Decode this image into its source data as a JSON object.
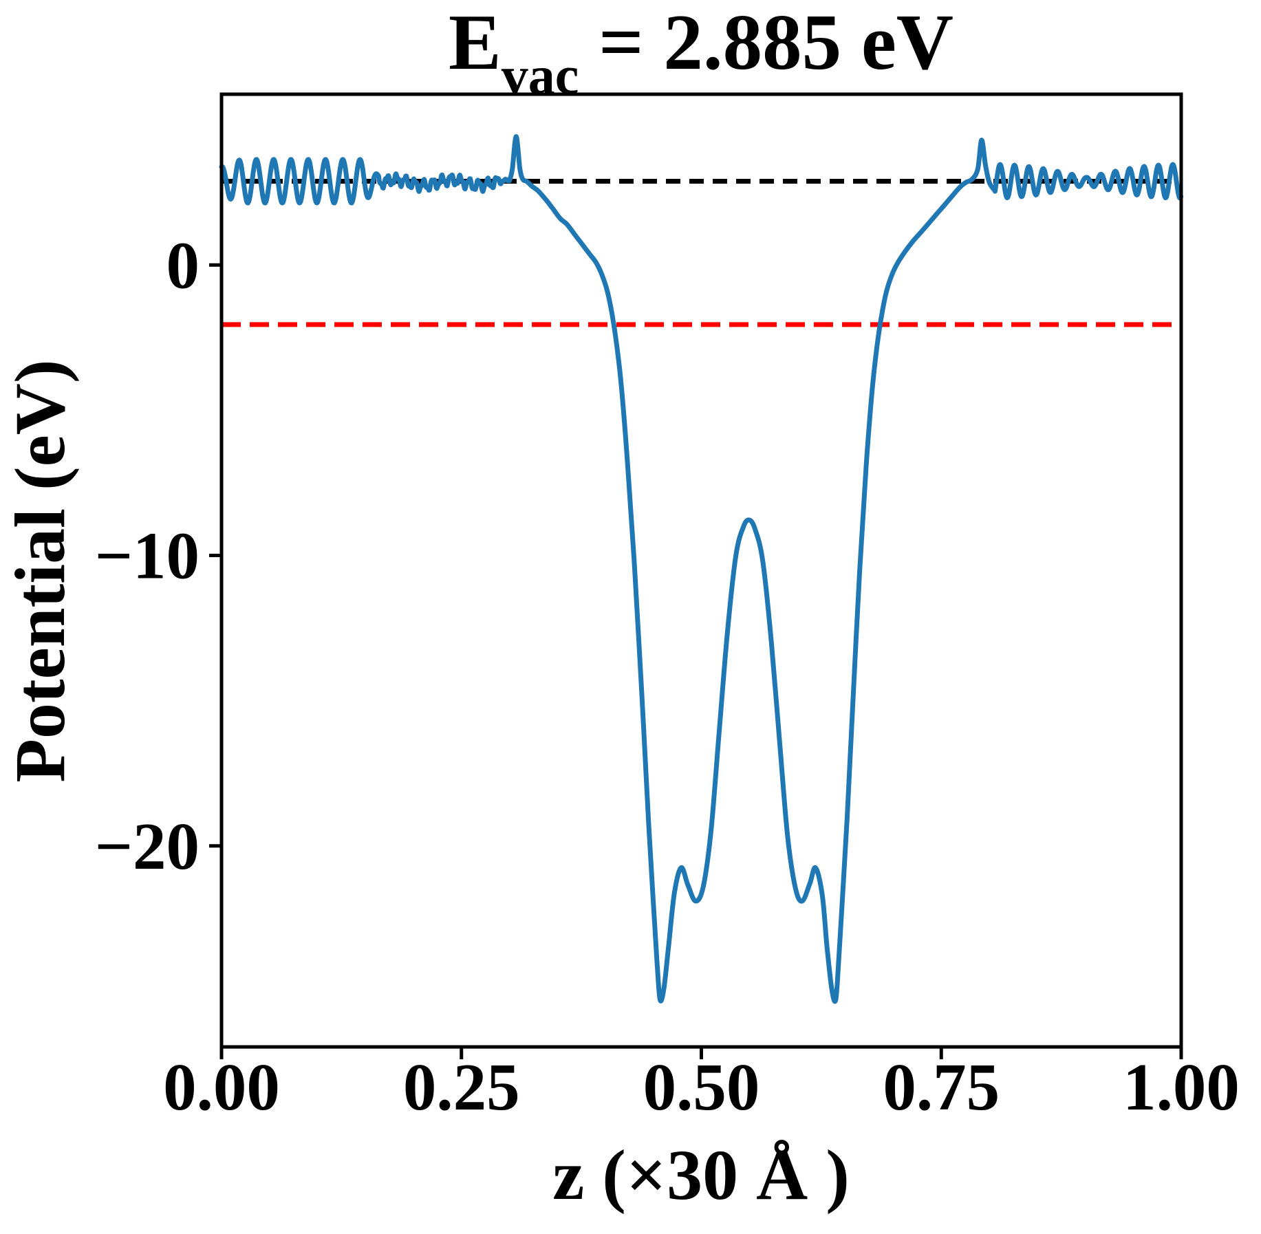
{
  "figure": {
    "background": "#ffffff"
  },
  "chart_data": {
    "type": "line",
    "title": {
      "full": "E_vac = 2.885 eV",
      "main": "E",
      "sub": "vac",
      "rest": " = 2.885 eV"
    },
    "xlabel": "z (×30 Å )",
    "ylabel": "Potential (eV)",
    "xlim": [
      0,
      1
    ],
    "ylim": [
      -26.92,
      5.88
    ],
    "grid": false,
    "legend": null,
    "xticks": [
      {
        "value": 0.0,
        "label": "0.00"
      },
      {
        "value": 0.25,
        "label": "0.25"
      },
      {
        "value": 0.5,
        "label": "0.50"
      },
      {
        "value": 0.75,
        "label": "0.75"
      },
      {
        "value": 1.0,
        "label": "1.00"
      }
    ],
    "yticks": [
      {
        "value": 0,
        "label": "0"
      },
      {
        "value": -10,
        "label": "−10"
      },
      {
        "value": -20,
        "label": "−20"
      }
    ],
    "hlines": [
      {
        "name": "vacuum-level",
        "y": 2.885,
        "color": "#000000",
        "style": "dashed",
        "dash": [
          21,
          13
        ],
        "width": 7
      },
      {
        "name": "fermi-level",
        "y": -2.05,
        "color": "#ff0000",
        "style": "dashed",
        "dash": [
          28,
          13
        ],
        "width": 7
      }
    ],
    "series": [
      {
        "name": "planar-averaged-potential",
        "color": "#1f77b4",
        "linewidth": 7,
        "keypoints": [
          [
            0.3,
            2.9
          ],
          [
            0.303,
            3.3
          ],
          [
            0.307,
            4.42
          ],
          [
            0.311,
            3.3
          ],
          [
            0.314,
            2.95
          ],
          [
            0.318,
            2.88
          ],
          [
            0.324,
            2.7
          ],
          [
            0.33,
            2.55
          ],
          [
            0.338,
            2.25
          ],
          [
            0.345,
            1.95
          ],
          [
            0.353,
            1.6
          ],
          [
            0.36,
            1.4
          ],
          [
            0.368,
            1.05
          ],
          [
            0.375,
            0.75
          ],
          [
            0.383,
            0.4
          ],
          [
            0.39,
            0.1
          ],
          [
            0.396,
            -0.3
          ],
          [
            0.402,
            -0.9
          ],
          [
            0.407,
            -1.7
          ],
          [
            0.412,
            -2.8
          ],
          [
            0.417,
            -4.3
          ],
          [
            0.423,
            -6.8
          ],
          [
            0.43,
            -10.2
          ],
          [
            0.438,
            -14.8
          ],
          [
            0.445,
            -19.2
          ],
          [
            0.45,
            -22.0
          ],
          [
            0.454,
            -24.1
          ],
          [
            0.457,
            -25.3
          ],
          [
            0.461,
            -24.9
          ],
          [
            0.466,
            -23.4
          ],
          [
            0.472,
            -21.6
          ],
          [
            0.479,
            -20.75
          ],
          [
            0.486,
            -21.35
          ],
          [
            0.494,
            -21.9
          ],
          [
            0.502,
            -21.4
          ],
          [
            0.51,
            -19.5
          ],
          [
            0.518,
            -16.3
          ],
          [
            0.527,
            -12.7
          ],
          [
            0.536,
            -10.0
          ],
          [
            0.544,
            -9.0
          ],
          [
            0.55,
            -8.78
          ],
          [
            0.556,
            -9.1
          ],
          [
            0.564,
            -10.2
          ],
          [
            0.573,
            -13.0
          ],
          [
            0.582,
            -16.6
          ],
          [
            0.59,
            -19.7
          ],
          [
            0.598,
            -21.45
          ],
          [
            0.605,
            -21.9
          ],
          [
            0.613,
            -21.3
          ],
          [
            0.619,
            -20.75
          ],
          [
            0.626,
            -21.7
          ],
          [
            0.631,
            -23.5
          ],
          [
            0.636,
            -24.95
          ],
          [
            0.64,
            -25.3
          ],
          [
            0.643,
            -24.0
          ],
          [
            0.647,
            -21.8
          ],
          [
            0.652,
            -19.0
          ],
          [
            0.658,
            -15.0
          ],
          [
            0.665,
            -10.5
          ],
          [
            0.672,
            -6.8
          ],
          [
            0.678,
            -4.3
          ],
          [
            0.683,
            -2.8
          ],
          [
            0.688,
            -1.7
          ],
          [
            0.693,
            -0.9
          ],
          [
            0.699,
            -0.3
          ],
          [
            0.705,
            0.1
          ],
          [
            0.712,
            0.45
          ],
          [
            0.72,
            0.8
          ],
          [
            0.728,
            1.1
          ],
          [
            0.736,
            1.4
          ],
          [
            0.745,
            1.75
          ],
          [
            0.753,
            2.05
          ],
          [
            0.762,
            2.4
          ],
          [
            0.77,
            2.7
          ],
          [
            0.776,
            2.85
          ],
          [
            0.782,
            2.95
          ],
          [
            0.788,
            3.3
          ],
          [
            0.792,
            4.3
          ],
          [
            0.796,
            3.45
          ],
          [
            0.8,
            2.85
          ],
          [
            0.806,
            2.55
          ]
        ],
        "left_oscillation": {
          "x0": 0.0,
          "x1": 0.2995,
          "step": 0.0006,
          "base": 2.885,
          "blend_start": 0.284,
          "blend_to": 2.9,
          "main": {
            "period": 0.018,
            "phase": 1.45,
            "amp_start": 0.5,
            "amp_full": 0.75,
            "ramp_end": 0.02,
            "decay_start": 0.148,
            "decay_end": 0.164,
            "amp_small": 0.18
          },
          "small": {
            "center_offset": -0.05,
            "amp": 0.16,
            "period": 0.0095,
            "phase": 0.4,
            "wobble_amp": 0.1,
            "wobble_period": 0.058,
            "wobble_phase": 0.8,
            "micro_amp": 0.06,
            "micro_period": 0.0037,
            "micro_phase": 1.2
          }
        },
        "right_oscillation": {
          "x0": 0.806,
          "x1": 1.0,
          "step": 0.0006,
          "base": 2.885,
          "period": 0.015,
          "phase": -0.64,
          "amp_min": 0.13,
          "amp_max": 0.58,
          "env_period": 0.19
        }
      }
    ]
  }
}
